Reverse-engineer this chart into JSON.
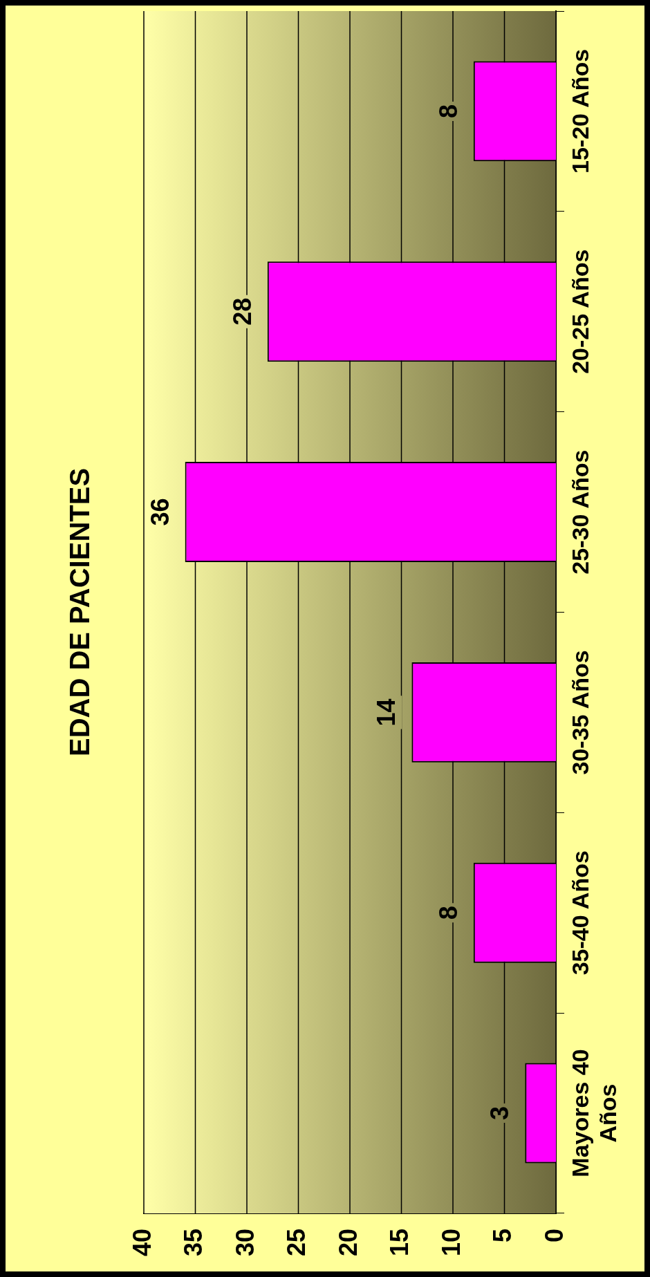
{
  "chart_data": {
    "type": "bar",
    "title": "EDAD DE PACIENTES",
    "orientation": "horizontal",
    "categories": [
      "15-20 Años",
      "20-25 Años",
      "25-30 Años",
      "30-35 Años",
      "35-40 Años",
      "Mayores 40 Años"
    ],
    "values": [
      8,
      28,
      36,
      14,
      8,
      3
    ],
    "color": "#ff00ff",
    "xlim": [
      40,
      0
    ],
    "xticks": [
      0,
      5,
      10,
      15,
      20,
      25,
      30,
      35,
      40
    ],
    "grid": "x",
    "data_labels": true,
    "legend": false
  }
}
